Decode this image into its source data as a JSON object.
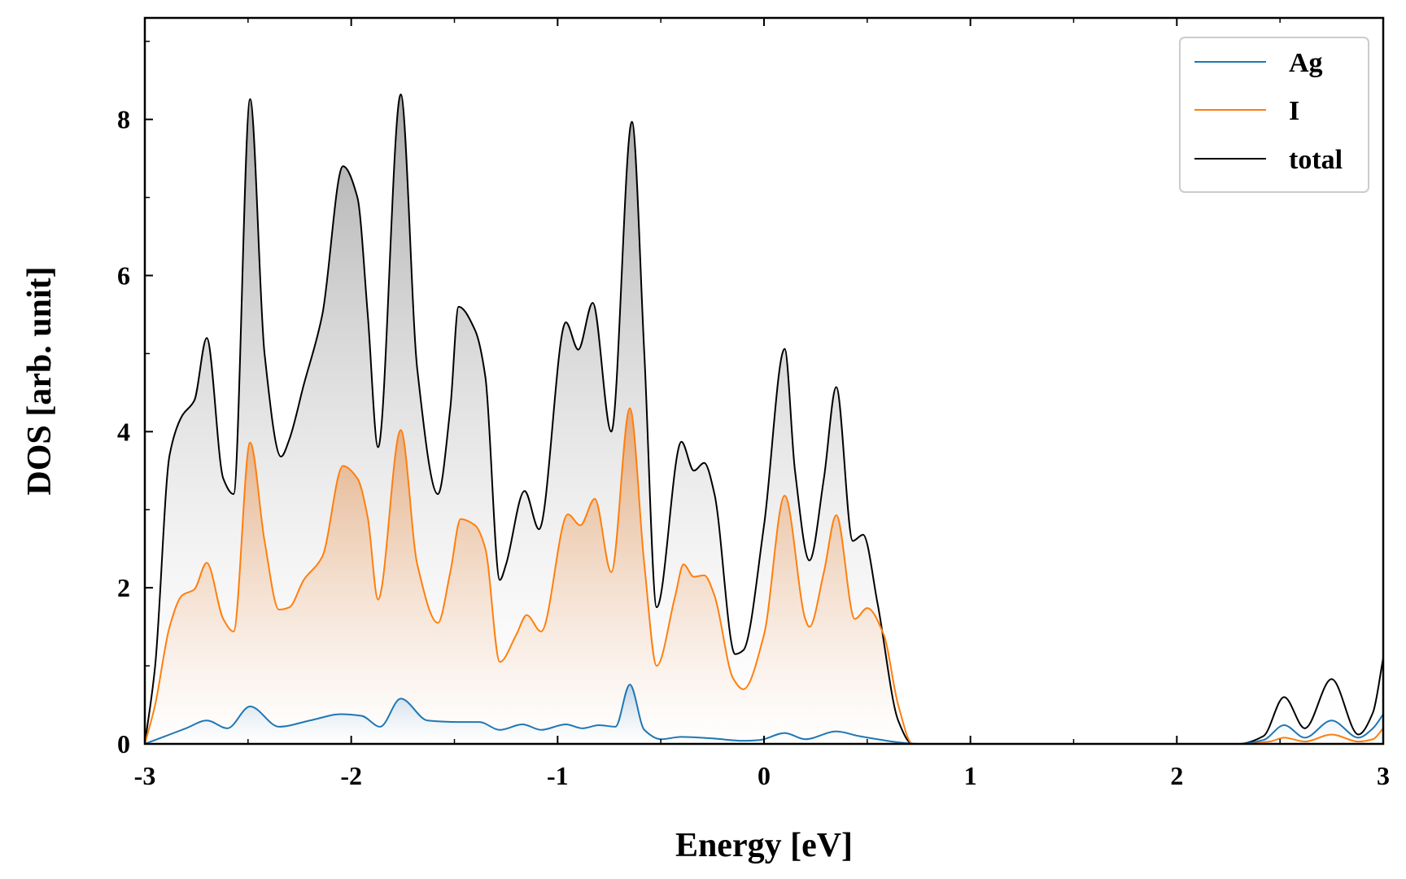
{
  "chart_data": {
    "type": "line",
    "title": "",
    "xlabel": "Energy [eV]",
    "ylabel": "DOS [arb. unit]",
    "xlim": [
      -3,
      3
    ],
    "ylim": [
      0,
      9.3
    ],
    "xticks": [
      -3,
      -2,
      -1,
      0,
      1,
      2,
      3
    ],
    "xtick_labels": [
      "-3",
      "-2",
      "-1",
      "0",
      "1",
      "2",
      "3"
    ],
    "yticks": [
      0,
      2,
      4,
      6,
      8
    ],
    "ytick_labels": [
      "0",
      "2",
      "4",
      "6",
      "8"
    ],
    "grid": false,
    "legend_position": "top-right",
    "fill_under_curves": true,
    "series": [
      {
        "name": "Ag",
        "color": "#1f77b4",
        "x": [
          -3.0,
          -2.9,
          -2.8,
          -2.7,
          -2.6,
          -2.49,
          -2.35,
          -2.2,
          -2.05,
          -1.95,
          -1.86,
          -1.76,
          -1.63,
          -1.48,
          -1.38,
          -1.28,
          -1.17,
          -1.08,
          -0.96,
          -0.88,
          -0.8,
          -0.72,
          -0.65,
          -0.58,
          -0.5,
          -0.4,
          -0.25,
          -0.1,
          -0.02,
          0.1,
          0.2,
          0.35,
          0.46,
          0.55,
          0.65,
          0.75,
          2.3,
          2.42,
          2.52,
          2.62,
          2.75,
          2.88,
          2.95,
          3.0
        ],
        "y": [
          0.0,
          0.1,
          0.2,
          0.3,
          0.2,
          0.48,
          0.22,
          0.3,
          0.38,
          0.36,
          0.22,
          0.58,
          0.3,
          0.28,
          0.28,
          0.18,
          0.25,
          0.18,
          0.25,
          0.2,
          0.24,
          0.22,
          0.76,
          0.18,
          0.06,
          0.09,
          0.07,
          0.04,
          0.05,
          0.14,
          0.06,
          0.16,
          0.1,
          0.06,
          0.02,
          0.0,
          0.0,
          0.05,
          0.24,
          0.08,
          0.3,
          0.08,
          0.2,
          0.38
        ]
      },
      {
        "name": "I",
        "color": "#ff7f0e",
        "x": [
          -3.0,
          -2.95,
          -2.88,
          -2.82,
          -2.76,
          -2.7,
          -2.62,
          -2.57,
          -2.49,
          -2.42,
          -2.35,
          -2.3,
          -2.23,
          -2.14,
          -2.04,
          -1.97,
          -1.92,
          -1.87,
          -1.76,
          -1.68,
          -1.58,
          -1.52,
          -1.47,
          -1.4,
          -1.35,
          -1.28,
          -1.2,
          -1.15,
          -1.08,
          -0.95,
          -0.89,
          -0.82,
          -0.74,
          -0.65,
          -0.58,
          -0.52,
          -0.43,
          -0.39,
          -0.34,
          -0.29,
          -0.24,
          -0.15,
          -0.1,
          0.0,
          0.1,
          0.2,
          0.22,
          0.29,
          0.35,
          0.44,
          0.5,
          0.58,
          0.65,
          0.72,
          2.3,
          2.45,
          2.52,
          2.62,
          2.75,
          2.88,
          2.95,
          3.0
        ],
        "y": [
          0.0,
          0.5,
          1.5,
          1.9,
          1.98,
          2.32,
          1.6,
          1.44,
          3.86,
          2.6,
          1.72,
          1.75,
          2.1,
          2.4,
          3.56,
          3.4,
          2.9,
          1.85,
          4.02,
          2.3,
          1.55,
          2.2,
          2.88,
          2.8,
          2.5,
          1.05,
          1.4,
          1.65,
          1.44,
          2.94,
          2.8,
          3.14,
          2.2,
          4.3,
          2.3,
          1.0,
          1.9,
          2.3,
          2.14,
          2.16,
          1.9,
          0.84,
          0.7,
          1.4,
          3.18,
          1.6,
          1.5,
          2.2,
          2.93,
          1.6,
          1.74,
          1.4,
          0.5,
          0.0,
          0.0,
          0.03,
          0.08,
          0.03,
          0.12,
          0.03,
          0.06,
          0.2
        ]
      },
      {
        "name": "total",
        "color": "#000000",
        "x": [
          -3.0,
          -2.95,
          -2.88,
          -2.82,
          -2.76,
          -2.7,
          -2.62,
          -2.57,
          -2.49,
          -2.42,
          -2.34,
          -2.3,
          -2.23,
          -2.14,
          -2.04,
          -1.97,
          -1.92,
          -1.87,
          -1.76,
          -1.68,
          -1.58,
          -1.52,
          -1.48,
          -1.4,
          -1.35,
          -1.28,
          -1.25,
          -1.16,
          -1.09,
          -0.96,
          -0.9,
          -0.83,
          -0.74,
          -0.64,
          -0.58,
          -0.52,
          -0.4,
          -0.34,
          -0.29,
          -0.24,
          -0.14,
          -0.1,
          0.0,
          0.1,
          0.15,
          0.22,
          0.29,
          0.35,
          0.43,
          0.48,
          0.55,
          0.65,
          0.72,
          2.3,
          2.42,
          2.52,
          2.62,
          2.75,
          2.88,
          2.95,
          3.0
        ],
        "y": [
          0.0,
          1.0,
          3.7,
          4.2,
          4.4,
          5.2,
          3.4,
          3.2,
          8.26,
          5.0,
          3.68,
          3.9,
          4.6,
          5.5,
          7.4,
          7.0,
          5.5,
          3.8,
          8.32,
          4.8,
          3.2,
          4.3,
          5.6,
          5.3,
          4.7,
          2.1,
          2.3,
          3.24,
          2.75,
          5.4,
          5.05,
          5.65,
          4.0,
          7.97,
          5.0,
          1.75,
          3.87,
          3.5,
          3.6,
          3.2,
          1.15,
          1.2,
          2.8,
          5.06,
          3.5,
          2.35,
          3.4,
          4.57,
          2.6,
          2.68,
          1.8,
          0.3,
          0.0,
          0.0,
          0.1,
          0.6,
          0.2,
          0.83,
          0.12,
          0.4,
          1.1
        ]
      }
    ]
  }
}
